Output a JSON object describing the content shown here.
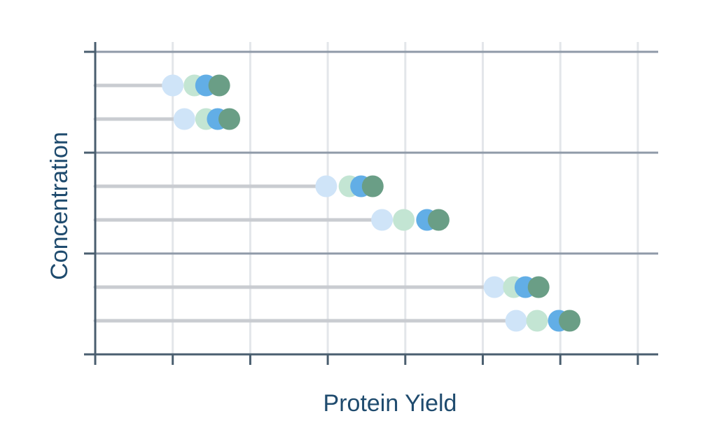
{
  "chart_data": {
    "type": "scatter",
    "title": "",
    "xlabel": "Protein Yield",
    "ylabel": "Concentration",
    "grid": true,
    "legend": "none",
    "xlim": [
      0,
      7.1
    ],
    "groups": 3,
    "rows": [
      {
        "group": 1,
        "values": [
          1.0,
          1.28,
          1.43,
          1.6
        ]
      },
      {
        "group": 1,
        "values": [
          1.15,
          1.43,
          1.58,
          1.73
        ]
      },
      {
        "group": 2,
        "values": [
          2.98,
          3.28,
          3.43,
          3.58
        ]
      },
      {
        "group": 2,
        "values": [
          3.7,
          3.98,
          4.28,
          4.43
        ]
      },
      {
        "group": 3,
        "values": [
          5.15,
          5.4,
          5.55,
          5.72
        ]
      },
      {
        "group": 3,
        "values": [
          5.43,
          5.7,
          5.98,
          6.12
        ]
      }
    ],
    "marker_colors": [
      "#cfe4f8",
      "#c3e5d3",
      "#62aee6",
      "#6a9e86"
    ],
    "stem_color": "#c9ccd1",
    "axis_color": "#4a5e6f",
    "group_line_color": "#8f9aa8",
    "grid_color": "#e3e6ea"
  }
}
